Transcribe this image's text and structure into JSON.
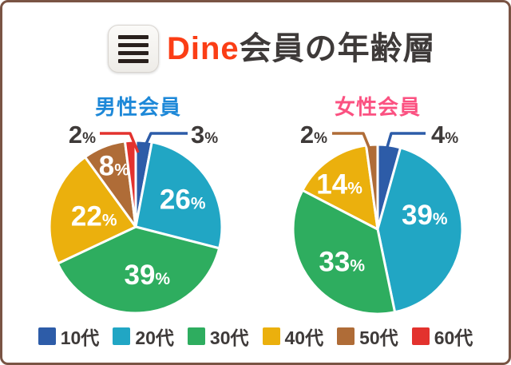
{
  "header": {
    "icon": "menu-lines-icon",
    "brand": "Dine",
    "title_rest": "会員の年齢層"
  },
  "colors": {
    "card_border": "#7a5444",
    "brand": "#fb3e16",
    "title_text": "#3e3a39",
    "outside_label_text": "#3e3a39",
    "slice_separator": "#ffffff"
  },
  "legend": {
    "items": [
      {
        "label": "10代",
        "color": "#2d5ca8"
      },
      {
        "label": "20代",
        "color": "#21a6c4"
      },
      {
        "label": "30代",
        "color": "#2ead5f"
      },
      {
        "label": "40代",
        "color": "#ebb00d"
      },
      {
        "label": "50代",
        "color": "#af6c37"
      },
      {
        "label": "60代",
        "color": "#e3322e"
      }
    ]
  },
  "chart_data": [
    {
      "type": "pie",
      "title": "男性会員",
      "title_color": "#1d88d8",
      "unit": "%",
      "categories": [
        "10代",
        "20代",
        "30代",
        "40代",
        "50代",
        "60代"
      ],
      "values": [
        3,
        26,
        39,
        22,
        8,
        2
      ],
      "colors": [
        "#2d5ca8",
        "#21a6c4",
        "#2ead5f",
        "#ebb00d",
        "#af6c37",
        "#e3322e"
      ],
      "legend_position": "bottom-shared"
    },
    {
      "type": "pie",
      "title": "女性会員",
      "title_color": "#fb5181",
      "unit": "%",
      "categories": [
        "10代",
        "20代",
        "30代",
        "40代",
        "50代"
      ],
      "values": [
        4,
        39,
        33,
        14,
        2
      ],
      "colors": [
        "#2d5ca8",
        "#21a6c4",
        "#2ead5f",
        "#ebb00d",
        "#af6c37"
      ],
      "legend_position": "bottom-shared"
    }
  ]
}
